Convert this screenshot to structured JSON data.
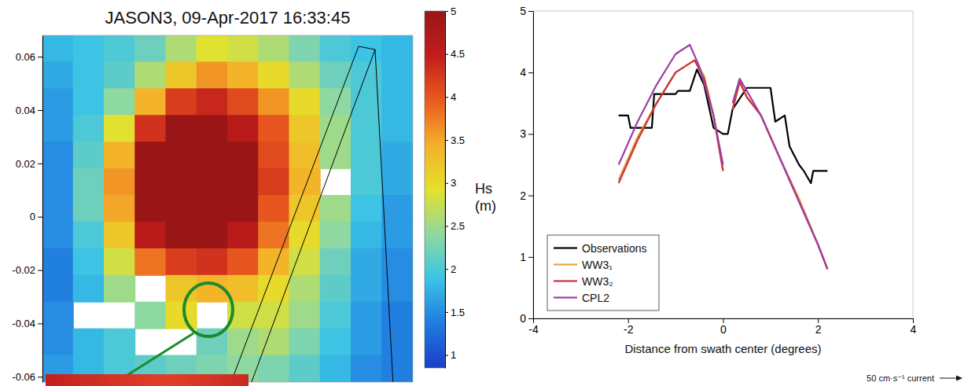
{
  "chart_data": [
    {
      "type": "heatmap",
      "title": "JASON3, 09-Apr-2017 16:33:45",
      "x": [
        -0.069,
        -0.057,
        -0.045,
        -0.033,
        -0.021,
        -0.009,
        0.003,
        0.015,
        0.027,
        0.039,
        0.051,
        0.063
      ],
      "y": [
        0.063,
        0.053,
        0.043,
        0.033,
        0.023,
        0.013,
        0.003,
        -0.007,
        -0.017,
        -0.027,
        -0.037,
        -0.047,
        -0.057
      ],
      "z": [
        [
          1.8,
          1.9,
          2.0,
          2.2,
          2.6,
          2.9,
          2.8,
          2.6,
          2.3,
          2.0,
          1.9,
          1.8
        ],
        [
          1.7,
          1.9,
          2.1,
          2.6,
          3.2,
          3.6,
          3.4,
          3.0,
          2.6,
          2.2,
          2.0,
          1.8
        ],
        [
          1.6,
          1.9,
          2.4,
          3.4,
          4.2,
          4.4,
          4.1,
          3.6,
          3.0,
          2.4,
          2.0,
          1.8
        ],
        [
          1.6,
          2.0,
          2.9,
          4.3,
          5.0,
          5.0,
          4.6,
          4.0,
          3.2,
          2.5,
          2.0,
          1.8
        ],
        [
          1.5,
          2.1,
          3.4,
          5.0,
          5.0,
          5.0,
          5.0,
          4.1,
          3.3,
          2.5,
          2.0,
          1.7
        ],
        [
          1.5,
          2.2,
          3.6,
          5.0,
          5.0,
          5.0,
          5.0,
          4.2,
          3.4,
          null,
          2.0,
          1.7
        ],
        [
          1.5,
          2.2,
          3.5,
          5.0,
          5.0,
          5.0,
          5.0,
          4.0,
          3.2,
          2.5,
          1.9,
          1.6
        ],
        [
          1.5,
          2.0,
          3.2,
          4.6,
          5.0,
          5.0,
          4.6,
          3.8,
          3.0,
          2.4,
          1.8,
          1.6
        ],
        [
          1.4,
          1.9,
          2.8,
          3.8,
          4.2,
          4.3,
          4.0,
          3.4,
          2.8,
          2.2,
          1.7,
          1.5
        ],
        [
          1.4,
          1.8,
          2.5,
          null,
          3.2,
          3.4,
          3.3,
          3.0,
          2.6,
          2.1,
          1.7,
          1.5
        ],
        [
          1.5,
          null,
          null,
          2.4,
          3.0,
          null,
          2.8,
          2.8,
          2.5,
          2.0,
          1.6,
          1.4
        ],
        [
          1.5,
          1.8,
          2.0,
          null,
          null,
          2.2,
          2.5,
          2.6,
          2.3,
          1.9,
          1.6,
          1.4
        ],
        [
          1.6,
          1.8,
          2.0,
          2.1,
          2.2,
          2.3,
          2.4,
          2.3,
          2.1,
          1.8,
          1.5,
          1.4
        ]
      ],
      "xlim": [
        -0.075,
        0.069
      ],
      "ylim": [
        -0.062,
        0.068
      ],
      "yticks": [
        0.06,
        0.04,
        0.02,
        0,
        -0.02,
        -0.04,
        -0.06
      ],
      "tick_labels": "y",
      "colorbar": {
        "label": "Hs (m)",
        "range": [
          0.85,
          5
        ],
        "ticks": [
          1,
          1.5,
          2,
          2.5,
          3,
          3.5,
          4,
          4.5,
          5
        ]
      }
    },
    {
      "type": "line",
      "xlabel": "Distance from swath center (degrees)",
      "xlim": [
        -4,
        4
      ],
      "xticks": [
        -4,
        -2,
        0,
        2,
        4
      ],
      "ylim": [
        0,
        5
      ],
      "yticks": [
        0,
        1,
        2,
        3,
        4,
        5
      ],
      "legend": "lower left",
      "annotations": [
        "50 cm·s⁻¹ current"
      ],
      "series": [
        {
          "name": "Observations",
          "color": "#000000",
          "x": [
            -2.2,
            -2.0,
            -1.95,
            -1.5,
            -1.45,
            -1.0,
            -0.95,
            -0.7,
            -0.55,
            -0.4,
            -0.2,
            0.0,
            0.1,
            0.2,
            0.5,
            1.0,
            1.1,
            1.3,
            1.4,
            1.6,
            1.7,
            1.85,
            1.9,
            2.2
          ],
          "values": [
            3.3,
            3.3,
            3.1,
            3.1,
            3.65,
            3.65,
            3.7,
            3.7,
            4.05,
            3.8,
            3.1,
            3.0,
            3.0,
            3.4,
            3.75,
            3.75,
            3.2,
            3.3,
            2.8,
            2.5,
            2.4,
            2.2,
            2.4,
            2.4
          ]
        },
        {
          "name": "WW3₁",
          "color": "#e8a33a",
          "x": [
            -2.2,
            -1.8,
            -1.4,
            -1.0,
            -0.6,
            -0.4,
            -0.2,
            0.0,
            0.1,
            0.2,
            0.35,
            0.5,
            0.8,
            1.2,
            1.6,
            2.0,
            2.2
          ],
          "values": [
            2.25,
            2.95,
            3.5,
            4.0,
            4.2,
            3.95,
            3.3,
            2.4,
            null,
            3.4,
            3.85,
            3.6,
            3.3,
            2.6,
            1.95,
            1.2,
            0.8
          ]
        },
        {
          "name": "WW3₂",
          "color": "#c8333b",
          "x": [
            -2.2,
            -1.8,
            -1.4,
            -1.0,
            -0.6,
            -0.4,
            -0.2,
            0.0,
            0.1,
            0.2,
            0.35,
            0.5,
            0.8,
            1.2,
            1.6,
            2.0,
            2.2
          ],
          "values": [
            2.2,
            2.9,
            3.5,
            4.0,
            4.2,
            3.9,
            3.3,
            2.4,
            null,
            3.4,
            3.85,
            3.6,
            3.3,
            2.6,
            1.9,
            1.2,
            0.8
          ]
        },
        {
          "name": "CPL2",
          "color": "#9b3fa6",
          "x": [
            -2.2,
            -1.8,
            -1.4,
            -1.0,
            -0.7,
            -0.5,
            -0.2,
            0.0,
            0.1,
            0.2,
            0.35,
            0.5,
            0.8,
            1.2,
            1.6,
            2.0,
            2.2
          ],
          "values": [
            2.5,
            3.2,
            3.8,
            4.3,
            4.45,
            4.1,
            3.3,
            2.5,
            null,
            3.5,
            3.9,
            3.7,
            3.3,
            2.6,
            1.9,
            1.2,
            0.8
          ]
        }
      ]
    }
  ]
}
